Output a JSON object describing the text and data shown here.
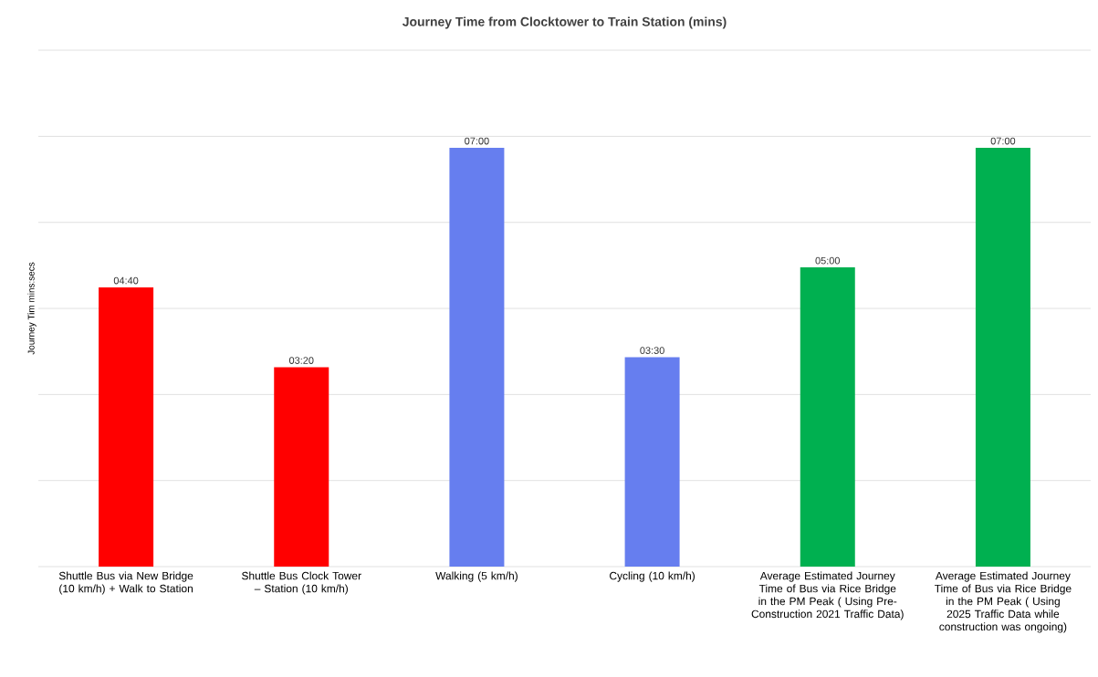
{
  "chart_data": {
    "type": "bar",
    "title": "Journey Time from Clocktower to Train Station (mins)",
    "ylabel": "Journey Tim mins:secs",
    "categories": [
      "Shuttle Bus via New Bridge (10 km/h) + Walk to Station",
      "Shuttle Bus Clock Tower  – Station (10 km/h)",
      "Walking (5 km/h)",
      "Cycling (10 km/h)",
      "Average Estimated Journey Time of Bus via Rice Bridge in the PM Peak ( Using Pre-Construction 2021 Traffic Data)",
      "Average Estimated Journey Time of Bus via Rice Bridge in the PM Peak ( Using 2025 Traffic Data while construction was ongoing)"
    ],
    "values": [
      4.667,
      3.333,
      7,
      3.5,
      5,
      7
    ],
    "value_labels": [
      "04:40",
      "03:20",
      "07:00",
      "03:30",
      "05:00",
      "07:00"
    ],
    "colors": [
      "#ff0000",
      "#ff0000",
      "#667eef",
      "#667eef",
      "#00b050",
      "#00b050"
    ],
    "ylim": [
      0,
      8.63
    ],
    "yticks": [
      {
        "value": 0,
        "label": null
      },
      {
        "value": 1.438,
        "label": null
      },
      {
        "value": 2.876,
        "label": null
      },
      {
        "value": 4.314,
        "label": null
      },
      {
        "value": 5.752,
        "label": null
      },
      {
        "value": 7.19,
        "label": null
      },
      {
        "value": 8.63,
        "label": null
      }
    ],
    "grid": "y",
    "tick_labels": "x"
  }
}
